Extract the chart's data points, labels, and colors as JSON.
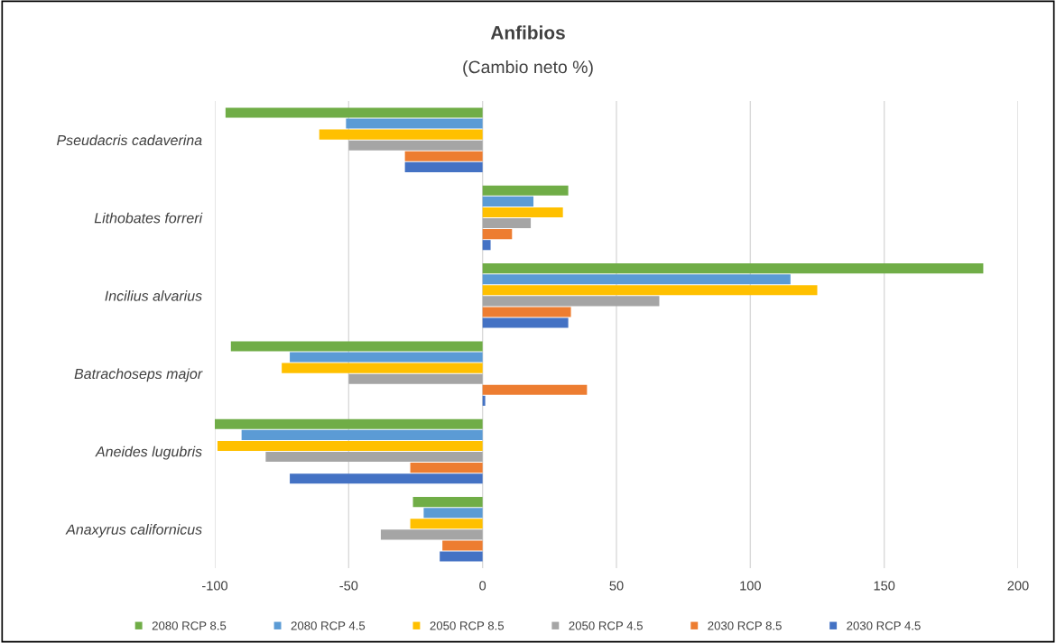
{
  "chart_data": {
    "type": "bar",
    "orientation": "horizontal",
    "title": "Anfibios",
    "subtitle": "(Cambio neto %)",
    "categories": [
      "Pseudacris cadaverina",
      "Lithobates forreri",
      "Incilius alvarius",
      "Batrachoseps major",
      "Aneides lugubris",
      "Anaxyrus californicus"
    ],
    "series": [
      {
        "name": "2080 RCP 8.5",
        "color": "#70ad47",
        "values": [
          -96,
          32,
          187,
          -94,
          -100,
          -26
        ]
      },
      {
        "name": "2080 RCP 4.5",
        "color": "#5b9bd5",
        "values": [
          -51,
          19,
          115,
          -72,
          -90,
          -22
        ]
      },
      {
        "name": "2050 RCP 8.5",
        "color": "#ffc000",
        "values": [
          -61,
          30,
          125,
          -75,
          -99,
          -27
        ]
      },
      {
        "name": "2050 RCP 4.5",
        "color": "#a5a5a5",
        "values": [
          -50,
          18,
          66,
          -50,
          -81,
          -38
        ]
      },
      {
        "name": "2030 RCP 8.5",
        "color": "#ed7d31",
        "values": [
          -29,
          11,
          33,
          39,
          -27,
          -15
        ]
      },
      {
        "name": "2030 RCP 4.5",
        "color": "#4472c4",
        "values": [
          -29,
          3,
          32,
          1,
          -72,
          -16
        ]
      }
    ],
    "xlim": [
      -100,
      200
    ],
    "xticks": [
      -100,
      -50,
      0,
      50,
      100,
      150,
      200
    ],
    "grid": "x",
    "legend": "bottom"
  }
}
